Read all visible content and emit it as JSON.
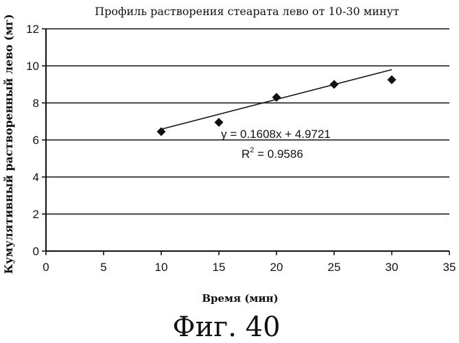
{
  "chart_data": {
    "type": "scatter",
    "title": "Профиль растворения стеарата лево от 10-30 минут",
    "xlabel": "Время (мин)",
    "ylabel": "Кумулятивный растворенный лево (мг)",
    "xlim": [
      0,
      35
    ],
    "ylim": [
      0,
      12
    ],
    "x_ticks": [
      "0",
      "5",
      "10",
      "15",
      "20",
      "25",
      "30",
      "35"
    ],
    "y_ticks": [
      "0",
      "2",
      "4",
      "6",
      "8",
      "10",
      "12"
    ],
    "grid": "horizontal",
    "marker": "diamond",
    "points": [
      {
        "x": 10,
        "y": 6.45
      },
      {
        "x": 15,
        "y": 6.95
      },
      {
        "x": 20,
        "y": 8.3
      },
      {
        "x": 25,
        "y": 9.0
      },
      {
        "x": 30,
        "y": 9.25
      }
    ],
    "trendline": {
      "slope": 0.1608,
      "intercept": 4.9721,
      "equation": "y = 0.1608x + 4.9721",
      "r2_prefix": "R",
      "r2_exponent": "2",
      "r2_suffix": " = 0.9586"
    }
  },
  "figure_label": "Фиг. 40"
}
